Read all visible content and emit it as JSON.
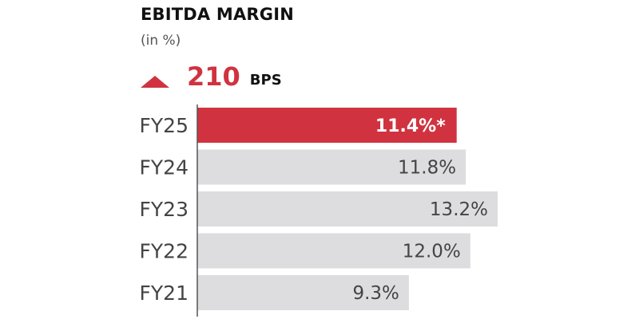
{
  "header": {
    "title": "EBITDA MARGIN",
    "subtitle": "(in %)",
    "change_value": "210",
    "change_unit": "BPS",
    "change_icon": "up-arrow-icon"
  },
  "colors": {
    "highlight_bar": "#d0333f",
    "bar": "#dddcde",
    "highlight_text": "#ffffff",
    "text": "#444444",
    "axis": "#555555",
    "accent": "#d0333f"
  },
  "chart_data": {
    "type": "bar",
    "orientation": "horizontal",
    "title": "EBITDA MARGIN",
    "subtitle": "(in %)",
    "categories": [
      "FY25",
      "FY24",
      "FY23",
      "FY22",
      "FY21"
    ],
    "values": [
      11.4,
      11.8,
      13.2,
      12.0,
      9.3
    ],
    "data_labels": [
      "11.4%*",
      "11.8%",
      "13.2%",
      "12.0%",
      "9.3%"
    ],
    "highlight_index": 0,
    "xlim": [
      0,
      13.2
    ],
    "grid": false,
    "legend": "none"
  }
}
